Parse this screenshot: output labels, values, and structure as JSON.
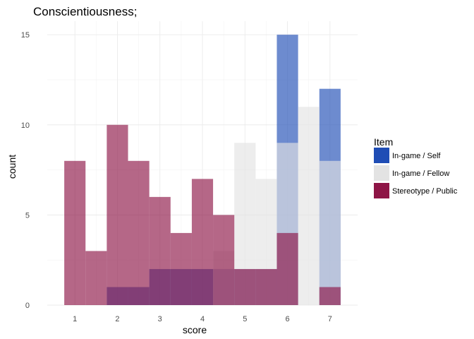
{
  "chart_data": {
    "type": "histogram",
    "title": "Conscientiousness;",
    "xlabel": "score",
    "ylabel": "count",
    "xlim": [
      0.35,
      7.65
    ],
    "ylim": [
      0,
      15.75
    ],
    "x_ticks": [
      1,
      2,
      3,
      4,
      5,
      6,
      7
    ],
    "y_ticks": [
      0,
      5,
      10,
      15
    ],
    "bin_width": 0.5,
    "overlay": "identity, semi-transparent",
    "grid": true,
    "legend": {
      "title": "Item",
      "position": "right",
      "entries": [
        "In-game / Self",
        "In-game / Fellow",
        "Stereotype / Public"
      ]
    },
    "series": [
      {
        "name": "In-game / Self",
        "color": "#1f4db5",
        "opacity": 0.65,
        "bins": [
          {
            "x": 1.0,
            "count": 0
          },
          {
            "x": 1.5,
            "count": 0
          },
          {
            "x": 2.0,
            "count": 1
          },
          {
            "x": 2.5,
            "count": 1
          },
          {
            "x": 3.0,
            "count": 2
          },
          {
            "x": 3.5,
            "count": 2
          },
          {
            "x": 4.0,
            "count": 2
          },
          {
            "x": 4.5,
            "count": 2
          },
          {
            "x": 5.0,
            "count": 2
          },
          {
            "x": 5.5,
            "count": 2
          },
          {
            "x": 6.0,
            "count": 15
          },
          {
            "x": 6.5,
            "count": 0
          },
          {
            "x": 7.0,
            "count": 12
          }
        ]
      },
      {
        "name": "In-game / Fellow",
        "color": "#e3e3e3",
        "opacity": 0.65,
        "bins": [
          {
            "x": 1.0,
            "count": 0
          },
          {
            "x": 1.5,
            "count": 0
          },
          {
            "x": 2.0,
            "count": 0
          },
          {
            "x": 2.5,
            "count": 0
          },
          {
            "x": 3.0,
            "count": 0
          },
          {
            "x": 3.5,
            "count": 0
          },
          {
            "x": 4.0,
            "count": 0
          },
          {
            "x": 4.5,
            "count": 3
          },
          {
            "x": 5.0,
            "count": 9
          },
          {
            "x": 5.5,
            "count": 7
          },
          {
            "x": 6.0,
            "count": 9
          },
          {
            "x": 6.5,
            "count": 11
          },
          {
            "x": 7.0,
            "count": 8
          }
        ]
      },
      {
        "name": "Stereotype / Public",
        "color": "#8e1546",
        "opacity": 0.65,
        "bins": [
          {
            "x": 1.0,
            "count": 8
          },
          {
            "x": 1.5,
            "count": 3
          },
          {
            "x": 2.0,
            "count": 10
          },
          {
            "x": 2.5,
            "count": 8
          },
          {
            "x": 3.0,
            "count": 6
          },
          {
            "x": 3.5,
            "count": 4
          },
          {
            "x": 4.0,
            "count": 7
          },
          {
            "x": 4.5,
            "count": 5
          },
          {
            "x": 5.0,
            "count": 2
          },
          {
            "x": 5.5,
            "count": 2
          },
          {
            "x": 6.0,
            "count": 4
          },
          {
            "x": 6.5,
            "count": 0
          },
          {
            "x": 7.0,
            "count": 1
          }
        ]
      }
    ]
  }
}
